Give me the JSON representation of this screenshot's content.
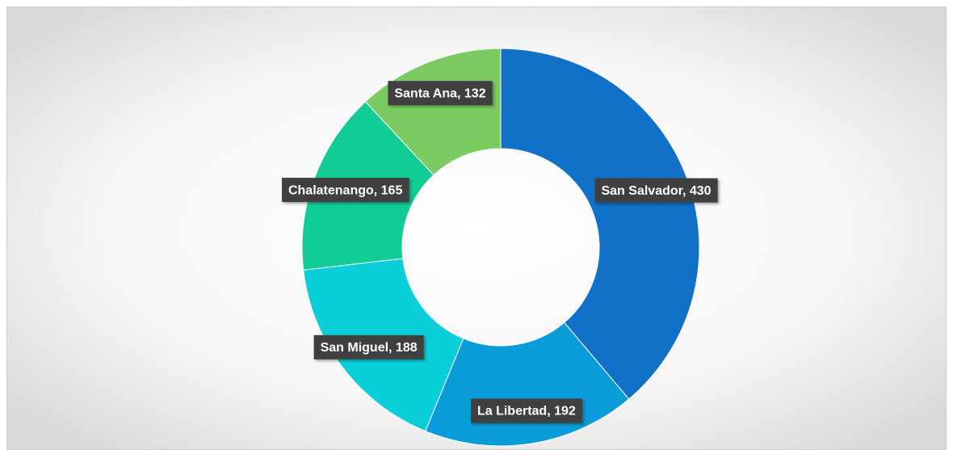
{
  "chart_data": {
    "type": "donut",
    "values": [
      430,
      192,
      188,
      165,
      132
    ],
    "value_labels": [
      "San Salvador, 430",
      "La Libertad, 192",
      "San Miguel, 188",
      "Chalatenango, 165",
      "Santa Ana, 132"
    ],
    "colors": [
      "#1170c8",
      "#0a9cd8",
      "#0bcfd8",
      "#12cc96",
      "#7ccb62"
    ]
  }
}
